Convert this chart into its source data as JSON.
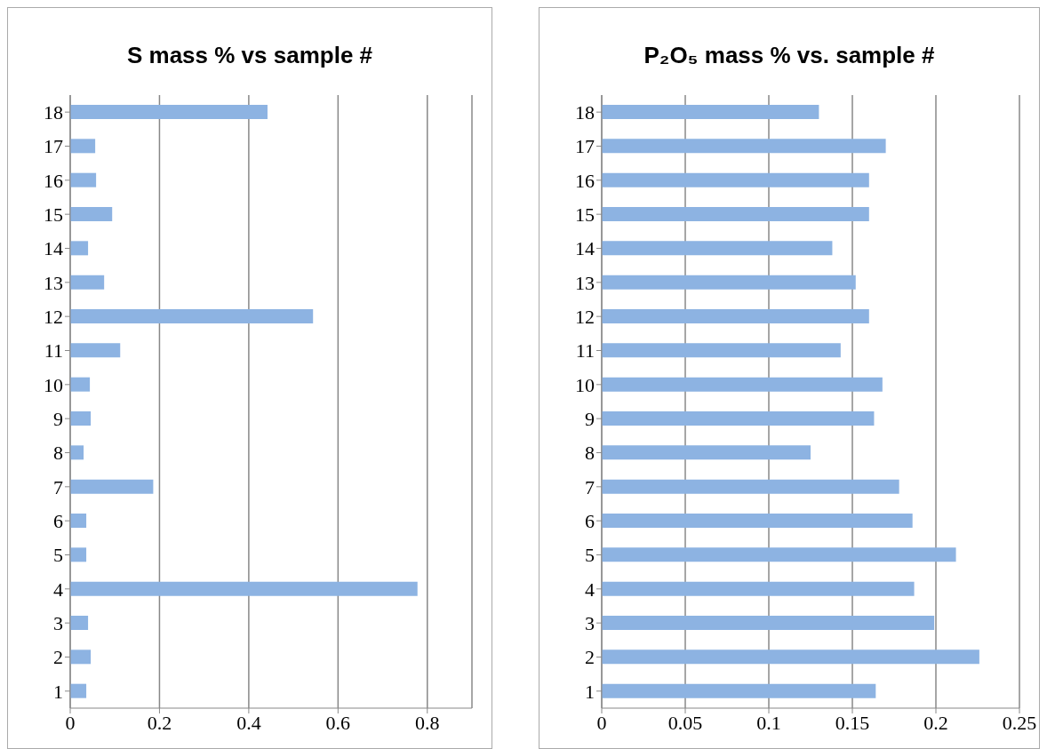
{
  "chart_data": [
    {
      "type": "bar",
      "orientation": "horizontal",
      "title": "S mass % vs sample #",
      "categories": [
        "18",
        "17",
        "16",
        "15",
        "14",
        "13",
        "12",
        "11",
        "10",
        "9",
        "8",
        "7",
        "6",
        "5",
        "4",
        "3",
        "2",
        "1"
      ],
      "values": [
        0.442,
        0.056,
        0.058,
        0.094,
        0.04,
        0.076,
        0.544,
        0.112,
        0.044,
        0.046,
        0.03,
        0.186,
        0.036,
        0.036,
        0.778,
        0.04,
        0.046,
        0.036
      ],
      "color": "#8db3e2",
      "xlim": [
        0,
        0.9
      ],
      "xticks": [
        0,
        0.2,
        0.4,
        0.6,
        0.8
      ],
      "grid": "x",
      "legend": false
    },
    {
      "type": "bar",
      "orientation": "horizontal",
      "title": "P₂O₅ mass % vs. sample #",
      "categories": [
        "18",
        "17",
        "16",
        "15",
        "14",
        "13",
        "12",
        "11",
        "10",
        "9",
        "8",
        "7",
        "6",
        "5",
        "4",
        "3",
        "2",
        "1"
      ],
      "values": [
        0.13,
        0.17,
        0.16,
        0.16,
        0.138,
        0.152,
        0.16,
        0.143,
        0.168,
        0.163,
        0.125,
        0.178,
        0.186,
        0.212,
        0.187,
        0.199,
        0.226,
        0.164
      ],
      "color": "#8db3e2",
      "xlim": [
        0,
        0.25
      ],
      "xticks": [
        0,
        0.05,
        0.1,
        0.15,
        0.2,
        0.25
      ],
      "grid": "x",
      "legend": false
    }
  ]
}
